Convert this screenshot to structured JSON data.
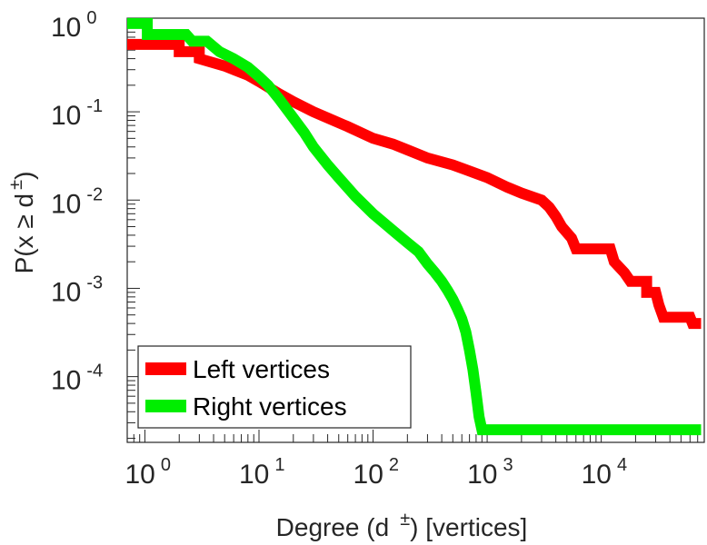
{
  "chart_data": {
    "type": "line",
    "xscale": "log",
    "yscale": "log",
    "xlim": [
      0.7,
      80000
    ],
    "ylim": [
      1.8e-05,
      1.15
    ],
    "xlabel": {
      "main": "Degree (d",
      "sup": "±",
      "rest": ") [vertices]"
    },
    "ylabel": {
      "main": "P(x ≥ d",
      "sup": "±",
      "rest": ")"
    },
    "x_ticks": [
      {
        "value": 1,
        "base": "10",
        "exp": "0"
      },
      {
        "value": 10,
        "base": "10",
        "exp": "1"
      },
      {
        "value": 100,
        "base": "10",
        "exp": "2"
      },
      {
        "value": 1000,
        "base": "10",
        "exp": "3"
      },
      {
        "value": 10000,
        "base": "10",
        "exp": "4"
      }
    ],
    "y_ticks": [
      {
        "value": 1,
        "base": "10",
        "exp": "0"
      },
      {
        "value": 0.1,
        "base": "10",
        "exp": "-1"
      },
      {
        "value": 0.01,
        "base": "10",
        "exp": "-2"
      },
      {
        "value": 0.001,
        "base": "10",
        "exp": "-3"
      },
      {
        "value": 0.0001,
        "base": "10",
        "exp": "-4"
      }
    ],
    "legend_position": "bottom-left",
    "series": [
      {
        "name": "Left vertices",
        "color": "#ff0000",
        "points": [
          [
            0.7,
            0.58
          ],
          [
            2,
            0.58
          ],
          [
            2,
            0.48
          ],
          [
            3,
            0.48
          ],
          [
            3,
            0.4
          ],
          [
            5,
            0.33
          ],
          [
            8,
            0.26
          ],
          [
            10,
            0.22
          ],
          [
            15,
            0.16
          ],
          [
            20,
            0.13
          ],
          [
            30,
            0.1
          ],
          [
            40,
            0.085
          ],
          [
            60,
            0.068
          ],
          [
            100,
            0.05
          ],
          [
            150,
            0.043
          ],
          [
            200,
            0.037
          ],
          [
            300,
            0.03
          ],
          [
            500,
            0.025
          ],
          [
            800,
            0.02
          ],
          [
            1000,
            0.018
          ],
          [
            1500,
            0.014
          ],
          [
            2000,
            0.012
          ],
          [
            3000,
            0.01
          ],
          [
            3500,
            0.0083
          ],
          [
            4000,
            0.0065
          ],
          [
            4500,
            0.005
          ],
          [
            5500,
            0.0037
          ],
          [
            6000,
            0.0028
          ],
          [
            12000,
            0.0028
          ],
          [
            13000,
            0.002
          ],
          [
            16000,
            0.0015
          ],
          [
            18000,
            0.0012
          ],
          [
            25000,
            0.0012
          ],
          [
            25000,
            0.0009
          ],
          [
            30000,
            0.0009
          ],
          [
            32000,
            0.00065
          ],
          [
            35000,
            0.00047
          ],
          [
            60000,
            0.00047
          ],
          [
            63000,
            0.0004
          ],
          [
            75000,
            0.0004
          ]
        ]
      },
      {
        "name": "Right vertices",
        "color": "#00ee00",
        "points": [
          [
            0.7,
            1.0
          ],
          [
            1.05,
            1.0
          ],
          [
            1.05,
            0.75
          ],
          [
            2.3,
            0.75
          ],
          [
            2.6,
            0.63
          ],
          [
            3.5,
            0.63
          ],
          [
            4.5,
            0.48
          ],
          [
            6,
            0.4
          ],
          [
            8,
            0.32
          ],
          [
            10,
            0.25
          ],
          [
            12,
            0.2
          ],
          [
            15,
            0.14
          ],
          [
            20,
            0.085
          ],
          [
            25,
            0.058
          ],
          [
            30,
            0.04
          ],
          [
            40,
            0.025
          ],
          [
            50,
            0.018
          ],
          [
            70,
            0.011
          ],
          [
            100,
            0.007
          ],
          [
            150,
            0.0045
          ],
          [
            200,
            0.0033
          ],
          [
            250,
            0.0026
          ],
          [
            300,
            0.0019
          ],
          [
            350,
            0.0015
          ],
          [
            400,
            0.0012
          ],
          [
            450,
            0.00095
          ],
          [
            500,
            0.00075
          ],
          [
            550,
            0.00058
          ],
          [
            600,
            0.00045
          ],
          [
            650,
            0.00032
          ],
          [
            700,
            0.0002
          ],
          [
            750,
            0.00012
          ],
          [
            800,
            6.5e-05
          ],
          [
            850,
            3.5e-05
          ],
          [
            900,
            2.5e-05
          ],
          [
            75000,
            2.5e-05
          ]
        ]
      }
    ]
  }
}
